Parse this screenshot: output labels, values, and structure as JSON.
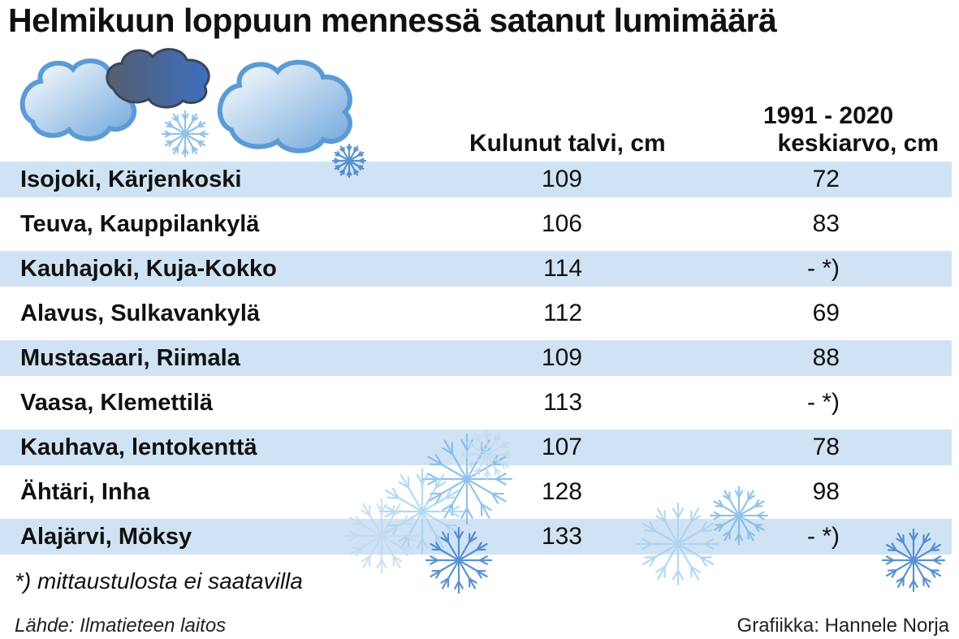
{
  "chart_data": {
    "type": "table",
    "title": "Helmikuun loppuun mennessä satanut lumimäärä",
    "columns": [
      "",
      "Kulunut talvi, cm",
      "1991 - 2020 keskiarvo, cm"
    ],
    "column2_lines": [
      "1991 - 2020",
      "keskiarvo, cm"
    ],
    "rows": [
      {
        "name": "Isojoki, Kärjenkoski",
        "current": "109",
        "average": "72"
      },
      {
        "name": "Teuva, Kauppilankylä",
        "current": "106",
        "average": "83"
      },
      {
        "name": "Kauhajoki, Kuja-Kokko",
        "current": "114",
        "average": "- *)"
      },
      {
        "name": "Alavus, Sulkavankylä",
        "current": "112",
        "average": "69"
      },
      {
        "name": "Mustasaari, Riimala",
        "current": "109",
        "average": "88"
      },
      {
        "name": "Vaasa, Klemettilä",
        "current": "113",
        "average": "- *)"
      },
      {
        "name": "Kauhava, lentokenttä",
        "current": "107",
        "average": "78"
      },
      {
        "name": "Ähtäri, Inha",
        "current": "128",
        "average": "98"
      },
      {
        "name": "Alajärvi, Möksy",
        "current": "133",
        "average": "- *)"
      }
    ],
    "footnote": "*) mittaustulosta ei saatavilla",
    "source": "Lähde: Ilmatieteen laitos",
    "credit": "Grafiikka: Hannele Norja",
    "shaded_row_color": "#cfe3f4"
  },
  "decoration": {
    "cloud_colors": [
      "#5b9bd5",
      "#a9cdee",
      "#4a72b8",
      "#555e6e"
    ],
    "snowflake_colors": [
      "#7fb8e6",
      "#a8d3f0",
      "#3f7fc8",
      "#c2dbef"
    ]
  }
}
